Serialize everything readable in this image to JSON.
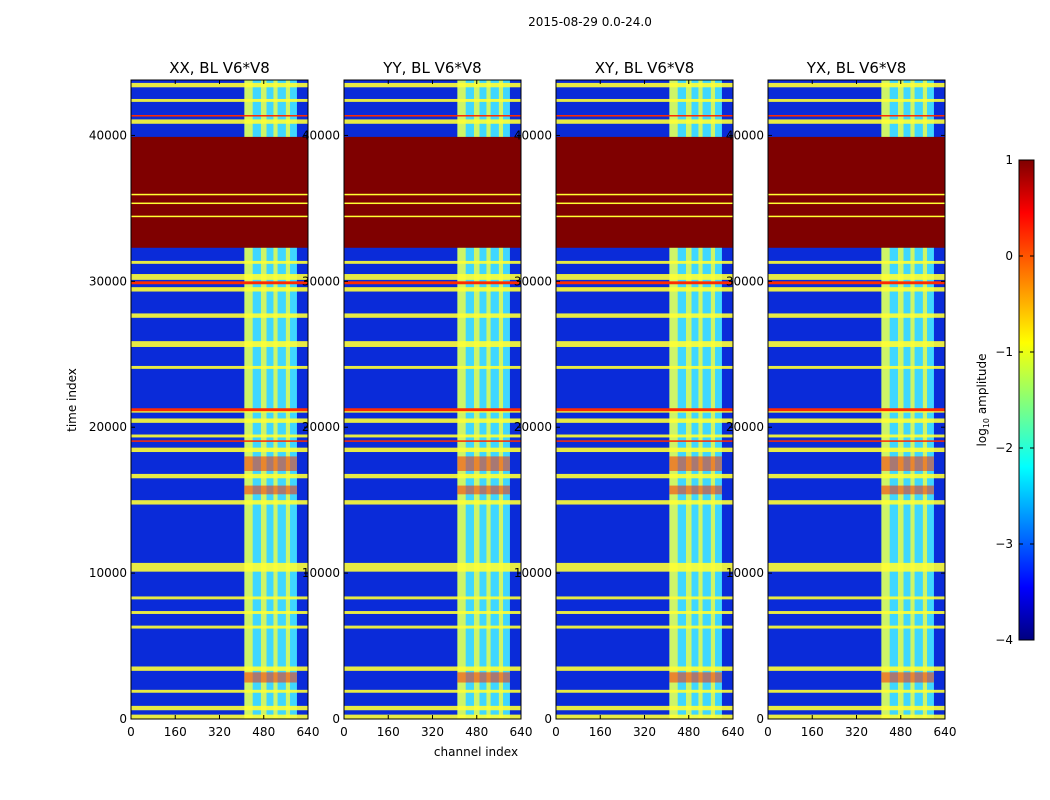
{
  "chart_data": {
    "type": "heatmap",
    "suptitle": "2015-08-29 0.0-24.0",
    "xlabel": "channel index",
    "ylabel": "time index",
    "xlim": [
      0,
      640
    ],
    "ylim": [
      0,
      43800
    ],
    "xticks": [
      "0",
      "160",
      "320",
      "480",
      "640"
    ],
    "yticks": [
      "0",
      "10000",
      "20000",
      "30000",
      "40000"
    ],
    "panels": [
      {
        "title": "XX, BL V6*V8"
      },
      {
        "title": "YY, BL V6*V8"
      },
      {
        "title": "XY, BL V6*V8"
      },
      {
        "title": "YX, BL V6*V8"
      }
    ],
    "colorbar": {
      "label": "log",
      "label_sub": "10",
      "label_suffix": " amplitude",
      "range": [
        -4,
        1
      ],
      "ticks": [
        "−4",
        "−3",
        "−2",
        "−1",
        "0",
        "1"
      ]
    },
    "features": {
      "saturated_time_band": [
        32300,
        39900
      ],
      "rfi_channel_band": [
        410,
        600
      ],
      "bright_time_bands": [
        [
          0,
          300
        ],
        [
          600,
          900
        ],
        [
          1800,
          2000
        ],
        [
          3300,
          3600
        ],
        [
          6200,
          6400
        ],
        [
          7200,
          7400
        ],
        [
          8200,
          8400
        ],
        [
          10100,
          10700
        ],
        [
          14700,
          15000
        ],
        [
          16500,
          16800
        ],
        [
          18300,
          18600
        ],
        [
          19300,
          19500
        ],
        [
          20300,
          20600
        ],
        [
          21000,
          21200
        ],
        [
          24000,
          24200
        ],
        [
          25500,
          25900
        ],
        [
          27500,
          27800
        ],
        [
          29300,
          29600
        ],
        [
          30100,
          30500
        ],
        [
          31200,
          31400
        ],
        [
          40800,
          41100
        ],
        [
          42300,
          42500
        ],
        [
          43300,
          43600
        ]
      ],
      "hot_time_bands": [
        [
          17000,
          18000
        ],
        [
          15400,
          16000
        ],
        [
          2500,
          3200
        ]
      ]
    },
    "colors": {
      "low": "#0a2bd9",
      "mid": "#3fd7ff",
      "high": "#ffff33",
      "saturated": "#7f0000",
      "red": "#ff2a00"
    }
  }
}
